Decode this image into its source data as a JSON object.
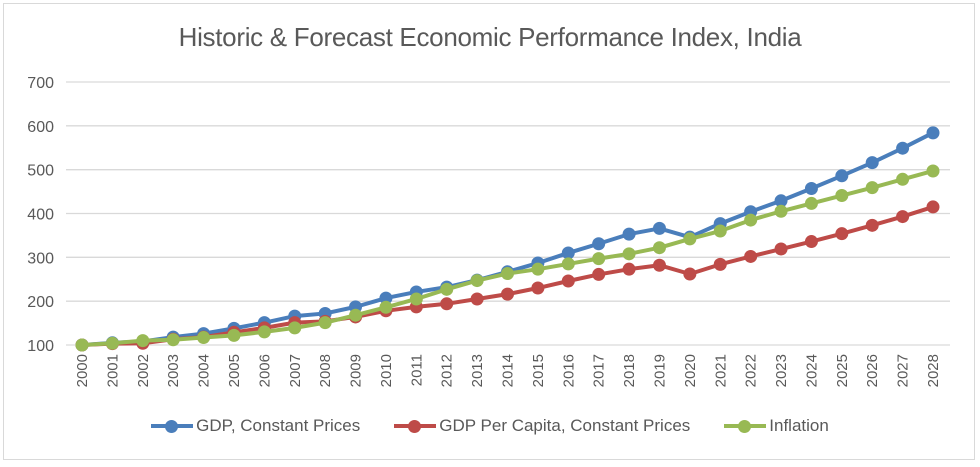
{
  "chart_data": {
    "type": "line",
    "title": "Historic  & Forecast Economic Performance Index, India",
    "xlabel": "",
    "ylabel": "",
    "ylim": [
      100,
      700
    ],
    "yticks": [
      "100",
      "200",
      "300",
      "400",
      "500",
      "600",
      "700"
    ],
    "grid": true,
    "legend_position": "bottom",
    "categories": [
      "2000",
      "2001",
      "2002",
      "2003",
      "2004",
      "2005",
      "2006",
      "2007",
      "2008",
      "2009",
      "2010",
      "2011",
      "2012",
      "2013",
      "2014",
      "2015",
      "2016",
      "2017",
      "2018",
      "2019",
      "2020",
      "2021",
      "2022",
      "2023",
      "2024",
      "2025",
      "2026",
      "2027",
      "2028"
    ],
    "series": [
      {
        "name": "GDP, Constant Prices",
        "color": "#4a7ebb",
        "values": [
          100,
          105,
          108,
          118,
          126,
          138,
          151,
          166,
          172,
          187,
          207,
          221,
          232,
          248,
          267,
          287,
          310,
          331,
          353,
          366,
          346,
          377,
          404,
          429,
          457,
          486,
          516,
          549,
          584
        ]
      },
      {
        "name": "GDP Per Capita, Constant Prices",
        "color": "#be4b48",
        "values": [
          100,
          103,
          104,
          113,
          118,
          129,
          139,
          151,
          154,
          164,
          178,
          187,
          194,
          205,
          216,
          230,
          246,
          261,
          273,
          282,
          262,
          284,
          302,
          319,
          336,
          354,
          373,
          393,
          415
        ]
      },
      {
        "name": "Inflation",
        "color": "#98b954",
        "values": [
          100,
          104,
          110,
          112,
          117,
          122,
          130,
          139,
          151,
          168,
          186,
          205,
          227,
          247,
          263,
          273,
          285,
          297,
          308,
          322,
          342,
          360,
          385,
          405,
          423,
          441,
          459,
          478,
          497
        ]
      }
    ]
  }
}
